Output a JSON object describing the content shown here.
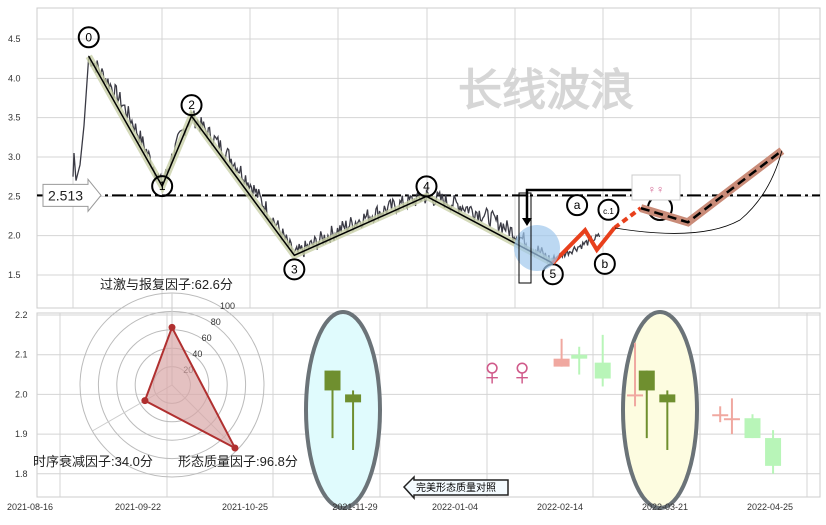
{
  "watermark": "长线波浪",
  "chart_data": [
    {
      "type": "line",
      "panel": "price-wave",
      "y_ticks": [
        "4.5",
        "4.0",
        "3.5",
        "3.0",
        "2.5",
        "2.0",
        "1.5"
      ],
      "ylim": [
        1.2,
        4.9
      ],
      "grid": true,
      "reference_line": {
        "value": 2.513,
        "label": "2.513",
        "style": "dash-dot"
      },
      "wave_points": [
        {
          "label": "0",
          "date": "2021-09-05",
          "value": 4.28
        },
        {
          "label": "1",
          "date": "2021-09-30",
          "value": 2.63
        },
        {
          "label": "2",
          "date": "2021-10-10",
          "value": 3.52
        },
        {
          "label": "3",
          "date": "2021-11-14",
          "value": 1.75
        },
        {
          "label": "4",
          "date": "2021-12-29",
          "value": 2.5
        },
        {
          "label": "5",
          "date": "2022-02-10",
          "value": 1.65
        }
      ],
      "projection_points": [
        {
          "label": "",
          "date": "2022-02-10",
          "value": 1.65
        },
        {
          "label": "a",
          "date": "2022-02-21",
          "value": 2.07
        },
        {
          "label": "b",
          "date": "2022-02-25",
          "value": 1.82
        },
        {
          "label": "c.1",
          "date": "2022-03-03",
          "value": 2.1
        }
      ],
      "forecast_points": [
        {
          "date": "2022-03-03",
          "value": 2.1
        },
        {
          "date": "2022-03-12",
          "value": 2.35
        },
        {
          "date": "2022-03-28",
          "value": 2.17
        },
        {
          "date": "2022-04-29",
          "value": 3.08
        }
      ],
      "colors": {
        "price": "#3a3a44",
        "wave": "#000000",
        "wave_glow": "#c8cfa8",
        "projection": "#e8401c",
        "forecast": "#c98b78",
        "highlight": "#9fc8ec"
      }
    },
    {
      "type": "radar",
      "panel": "factor-radar",
      "ring_labels": [
        "20",
        "40",
        "60",
        "80",
        "100"
      ],
      "axes": [
        {
          "label": "过激与报复因子:62.6分",
          "value": 62.6
        },
        {
          "label": "形态质量因子:96.8分",
          "value": 96.8
        },
        {
          "label": "时序衰减因子:34.0分",
          "value": 34.0
        }
      ],
      "range": [
        0,
        100
      ],
      "colors": {
        "fill": "#d8a6a6",
        "stroke": "#b03030"
      }
    },
    {
      "type": "candlestick",
      "panel": "pattern-comparison",
      "y_ticks": [
        "2.2",
        "2.1",
        "2.0",
        "1.9",
        "1.8"
      ],
      "ylim": [
        1.74,
        2.21
      ],
      "x_ticks": [
        "2021-08-16",
        "2021-09-22",
        "2021-10-25",
        "2021-11-29",
        "2022-01-04",
        "2022-02-14",
        "2022-03-21",
        "2022-04-25"
      ],
      "candles": [
        {
          "date": "2021-11-27",
          "open": 2.01,
          "close": 2.06,
          "high": 2.06,
          "low": 1.89,
          "color": "#6f8f2f"
        },
        {
          "date": "2021-12-04",
          "open": 1.98,
          "close": 2.0,
          "high": 2.01,
          "low": 1.86,
          "color": "#6f8f2f"
        },
        {
          "date": "2022-02-13",
          "open": 2.07,
          "close": 2.09,
          "high": 2.14,
          "low": 2.07,
          "color": "#f0a8a0"
        },
        {
          "date": "2022-02-19",
          "open": 2.09,
          "close": 2.1,
          "high": 2.12,
          "low": 2.05,
          "color": "#b8f5b8"
        },
        {
          "date": "2022-02-27",
          "open": 2.04,
          "close": 2.08,
          "high": 2.15,
          "low": 2.02,
          "color": "#b8f5b8"
        },
        {
          "date": "2022-03-10",
          "open": 2.0,
          "close": 2.0,
          "high": 2.13,
          "low": 1.97,
          "color": "#f0a8a0"
        },
        {
          "date": "2022-03-14",
          "open": 2.01,
          "close": 2.06,
          "high": 2.06,
          "low": 1.89,
          "color": "#6f8f2f"
        },
        {
          "date": "2022-03-21",
          "open": 1.98,
          "close": 2.0,
          "high": 2.01,
          "low": 1.86,
          "color": "#6f8f2f"
        },
        {
          "date": "2022-04-08",
          "open": 1.95,
          "close": 1.95,
          "high": 1.97,
          "low": 1.93,
          "color": "#f0a8a0"
        },
        {
          "date": "2022-04-12",
          "open": 1.94,
          "close": 1.94,
          "high": 1.99,
          "low": 1.9,
          "color": "#f0a8a0"
        },
        {
          "date": "2022-04-19",
          "open": 1.89,
          "close": 1.94,
          "high": 1.95,
          "low": 1.89,
          "color": "#b8f5b8"
        },
        {
          "date": "2022-04-26",
          "open": 1.82,
          "close": 1.89,
          "high": 1.91,
          "low": 1.8,
          "color": "#b8f5b8"
        }
      ],
      "annotation": "完美形态质量对照"
    }
  ]
}
